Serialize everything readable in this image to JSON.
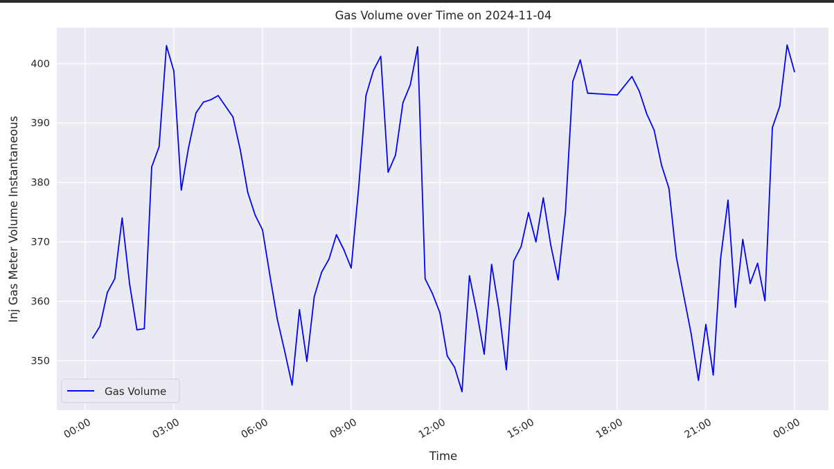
{
  "chart_data": {
    "type": "line",
    "title": "Gas Volume over Time on 2024-11-04",
    "xlabel": "Time",
    "ylabel": "Inj Gas Meter Volume Instantaneous",
    "x_ticks": [
      "00:00",
      "03:00",
      "06:00",
      "09:00",
      "12:00",
      "15:00",
      "18:00",
      "21:00",
      "00:00"
    ],
    "y_ticks": [
      350,
      360,
      370,
      380,
      390,
      400
    ],
    "xlim": [
      "2024-11-04 00:00",
      "2024-11-05 00:00"
    ],
    "ylim": [
      342,
      405
    ],
    "grid": true,
    "legend_position": "lower-left",
    "series": [
      {
        "name": "Gas Volume",
        "color": "#0000ff",
        "points": [
          [
            "00:15",
            353.8
          ],
          [
            "00:30",
            355.8
          ],
          [
            "00:45",
            361.5
          ],
          [
            "01:00",
            363.8
          ],
          [
            "01:15",
            374.0
          ],
          [
            "01:30",
            363.0
          ],
          [
            "01:45",
            355.2
          ],
          [
            "02:00",
            355.4
          ],
          [
            "02:15",
            382.6
          ],
          [
            "02:30",
            386.0
          ],
          [
            "02:45",
            403.0
          ],
          [
            "03:00",
            398.7
          ],
          [
            "03:15",
            378.7
          ],
          [
            "03:30",
            385.9
          ],
          [
            "03:45",
            391.7
          ],
          [
            "04:00",
            393.5
          ],
          [
            "04:15",
            393.9
          ],
          [
            "04:30",
            394.6
          ],
          [
            "05:00",
            391.0
          ],
          [
            "05:15",
            385.4
          ],
          [
            "05:30",
            378.3
          ],
          [
            "05:45",
            374.5
          ],
          [
            "06:00",
            372.0
          ],
          [
            "06:15",
            364.3
          ],
          [
            "06:30",
            357.0
          ],
          [
            "06:45",
            351.6
          ],
          [
            "07:00",
            345.9
          ],
          [
            "07:15",
            358.6
          ],
          [
            "07:30",
            349.9
          ],
          [
            "07:45",
            360.8
          ],
          [
            "08:00",
            364.9
          ],
          [
            "08:15",
            367.1
          ],
          [
            "08:30",
            371.2
          ],
          [
            "08:45",
            368.7
          ],
          [
            "09:00",
            365.6
          ],
          [
            "09:15",
            379.0
          ],
          [
            "09:30",
            394.6
          ],
          [
            "09:45",
            398.8
          ],
          [
            "10:00",
            401.2
          ],
          [
            "10:15",
            381.7
          ],
          [
            "10:30",
            384.6
          ],
          [
            "10:45",
            393.4
          ],
          [
            "11:00",
            396.4
          ],
          [
            "11:15",
            402.8
          ],
          [
            "11:30",
            363.8
          ],
          [
            "11:45",
            361.3
          ],
          [
            "12:00",
            358.1
          ],
          [
            "12:15",
            350.8
          ],
          [
            "12:30",
            348.9
          ],
          [
            "12:45",
            344.8
          ],
          [
            "13:00",
            364.3
          ],
          [
            "13:15",
            358.2
          ],
          [
            "13:30",
            351.1
          ],
          [
            "13:45",
            366.2
          ],
          [
            "14:00",
            358.6
          ],
          [
            "14:15",
            348.5
          ],
          [
            "14:30",
            366.8
          ],
          [
            "14:45",
            369.2
          ],
          [
            "15:00",
            374.9
          ],
          [
            "15:15",
            370.0
          ],
          [
            "15:30",
            377.4
          ],
          [
            "15:45",
            369.5
          ],
          [
            "16:00",
            363.6
          ],
          [
            "16:15",
            375.0
          ],
          [
            "16:30",
            397.0
          ],
          [
            "16:45",
            400.6
          ],
          [
            "17:00",
            395.0
          ],
          [
            "18:00",
            394.7
          ],
          [
            "18:30",
            397.8
          ],
          [
            "18:45",
            395.3
          ],
          [
            "19:00",
            391.5
          ],
          [
            "19:15",
            388.8
          ],
          [
            "19:30",
            382.9
          ],
          [
            "19:45",
            379.0
          ],
          [
            "20:00",
            367.5
          ],
          [
            "20:15",
            361.0
          ],
          [
            "20:30",
            354.6
          ],
          [
            "20:45",
            346.7
          ],
          [
            "21:00",
            356.1
          ],
          [
            "21:15",
            347.6
          ],
          [
            "21:30",
            367.2
          ],
          [
            "21:45",
            377.0
          ],
          [
            "22:00",
            359.0
          ],
          [
            "22:15",
            370.4
          ],
          [
            "22:30",
            363.0
          ],
          [
            "22:45",
            366.4
          ],
          [
            "23:00",
            360.1
          ],
          [
            "23:15",
            389.2
          ],
          [
            "23:30",
            392.8
          ],
          [
            "23:45",
            403.1
          ],
          [
            "00:00",
            398.6
          ]
        ]
      }
    ]
  }
}
